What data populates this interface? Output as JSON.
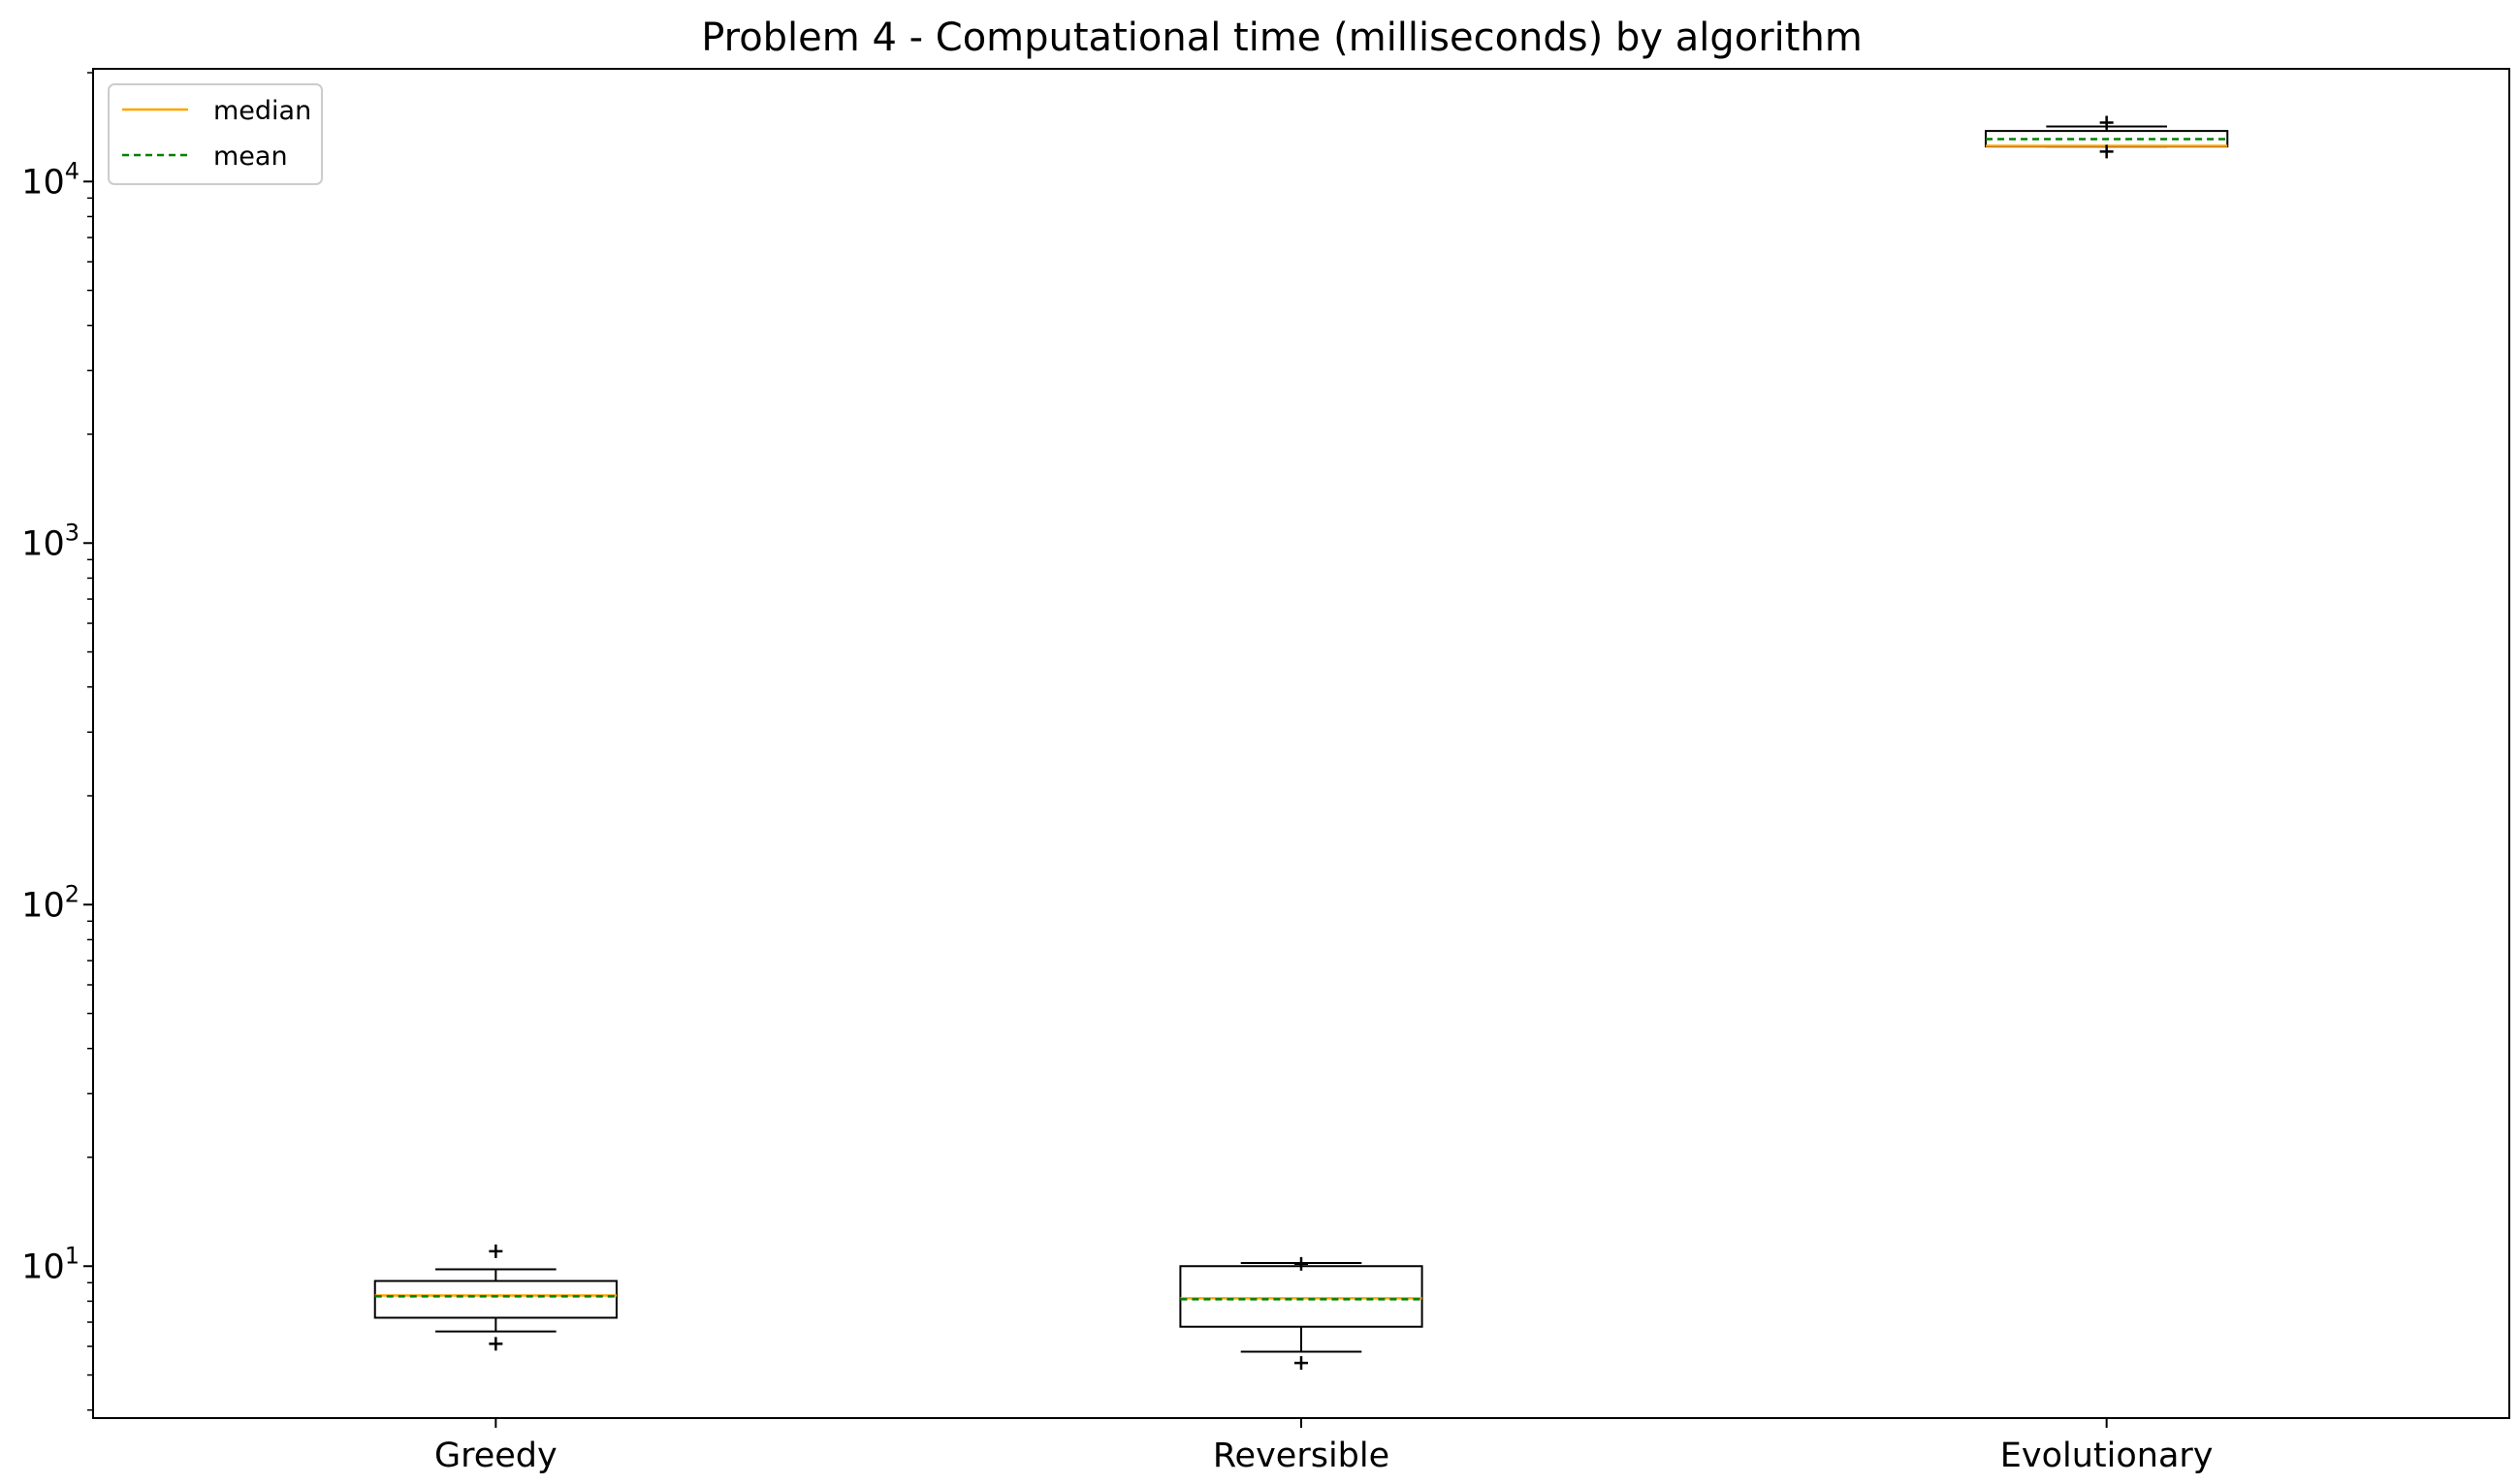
{
  "chart_data": {
    "type": "box",
    "title": "Problem 4 - Computational time (milliseconds) by algorithm",
    "xlabel": "",
    "ylabel": "",
    "yscale": "log",
    "ylim": [
      3.8,
      20500
    ],
    "yticks": [
      {
        "value": 10,
        "base": "10",
        "exp": "1"
      },
      {
        "value": 100,
        "base": "10",
        "exp": "2"
      },
      {
        "value": 1000,
        "base": "10",
        "exp": "3"
      },
      {
        "value": 10000,
        "base": "10",
        "exp": "4"
      }
    ],
    "categories": [
      "Greedy",
      "Reversible",
      "Evolutionary"
    ],
    "boxes": [
      {
        "name": "Greedy",
        "whislo": 6.6,
        "q1": 7.2,
        "median": 8.3,
        "mean": 8.25,
        "q3": 9.1,
        "whishi": 9.8,
        "fliers": [
          6.1,
          11.0
        ]
      },
      {
        "name": "Reversible",
        "whislo": 5.8,
        "q1": 6.8,
        "median": 8.15,
        "mean": 8.1,
        "q3": 10.0,
        "whishi": 10.2,
        "fliers": [
          5.4,
          10.15
        ]
      },
      {
        "name": "Evolutionary",
        "whislo": 12500,
        "q1": 12500,
        "median": 12550,
        "mean": 13100,
        "q3": 13800,
        "whishi": 14200,
        "fliers": [
          12100,
          14550
        ]
      }
    ],
    "legend": {
      "position": "upper-left",
      "entries": [
        {
          "label": "median",
          "color": "#ffa500",
          "style": "solid"
        },
        {
          "label": "mean",
          "color": "#008000",
          "style": "dashed"
        }
      ]
    },
    "colors": {
      "median": "#ffa500",
      "mean": "#008000",
      "box": "#000000"
    },
    "grid": false
  }
}
